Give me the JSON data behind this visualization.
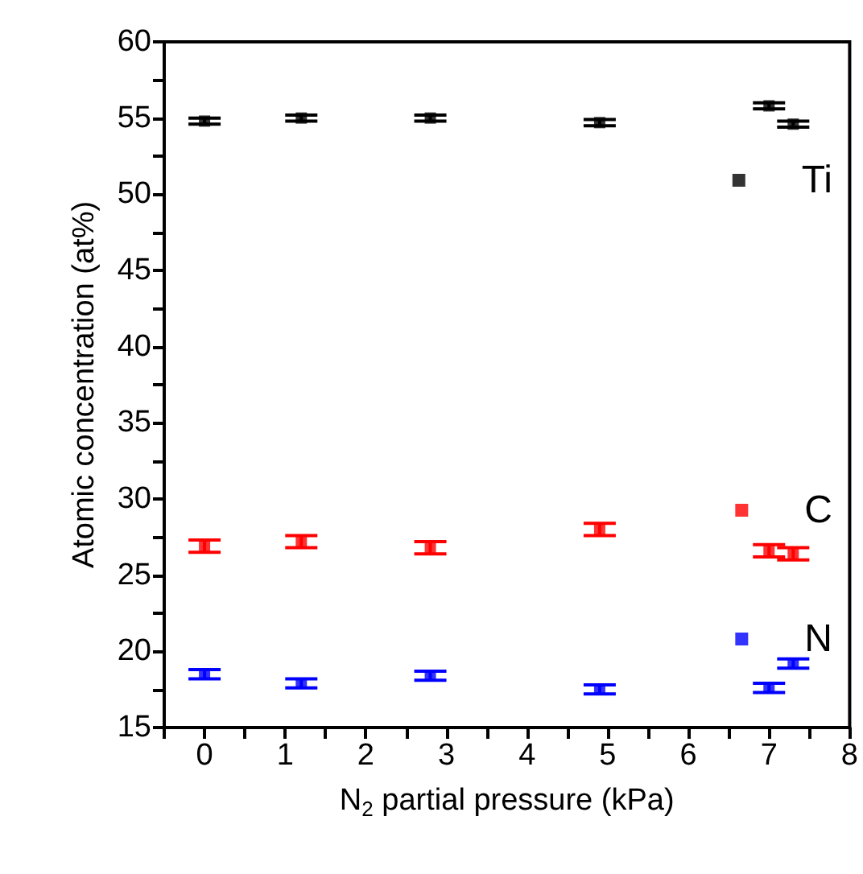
{
  "chart_data": {
    "type": "scatter",
    "xlabel": "N$_{2}$ partial pressure (kPa)",
    "ylabel": "Atomic concentration (at%)",
    "x": [
      0,
      1.2,
      2.8,
      4.9,
      7.0,
      7.3
    ],
    "series": [
      {
        "name": "Ti",
        "color": "#000000",
        "values": [
          54.8,
          55.0,
          55.0,
          54.7,
          55.8,
          54.6
        ],
        "errors": [
          0.2,
          0.2,
          0.2,
          0.2,
          0.2,
          0.2
        ]
      },
      {
        "name": "C",
        "color": "#ff0000",
        "values": [
          26.9,
          27.2,
          26.8,
          28.0,
          26.6,
          26.4
        ],
        "errors": [
          0.4,
          0.4,
          0.4,
          0.4,
          0.4,
          0.4
        ]
      },
      {
        "name": "N",
        "color": "#0000ff",
        "values": [
          18.5,
          17.9,
          18.4,
          17.5,
          17.6,
          19.2
        ],
        "errors": [
          0.3,
          0.3,
          0.3,
          0.3,
          0.3,
          0.3
        ]
      }
    ],
    "xlim": [
      -0.5,
      8
    ],
    "xticks": [
      {
        "value": -0.5,
        "label": null
      },
      0,
      {
        "value": 0.5,
        "label": null
      },
      1,
      {
        "value": 1.5,
        "label": null
      },
      2,
      {
        "value": 2.5,
        "label": null
      },
      3,
      {
        "value": 3.5,
        "label": null
      },
      4,
      {
        "value": 4.5,
        "label": null
      },
      5,
      {
        "value": 5.5,
        "label": null
      },
      6,
      {
        "value": 6.5,
        "label": null
      },
      7,
      {
        "value": 7.5,
        "label": null
      },
      8
    ],
    "ylim": [
      15,
      60
    ],
    "yticks": [
      15,
      {
        "value": 17.5,
        "label": null
      },
      20,
      {
        "value": 22.5,
        "label": null
      },
      25,
      {
        "value": 27.5,
        "label": null
      },
      30,
      {
        "value": 32.5,
        "label": null
      },
      35,
      {
        "value": 37.5,
        "label": null
      },
      40,
      {
        "value": 42.5,
        "label": null
      },
      45,
      {
        "value": 47.5,
        "label": null
      },
      50,
      {
        "value": 52.5,
        "label": null
      },
      55,
      {
        "value": 57.5,
        "label": null
      },
      60
    ],
    "grid": false,
    "legend": "right",
    "marker": "square"
  }
}
